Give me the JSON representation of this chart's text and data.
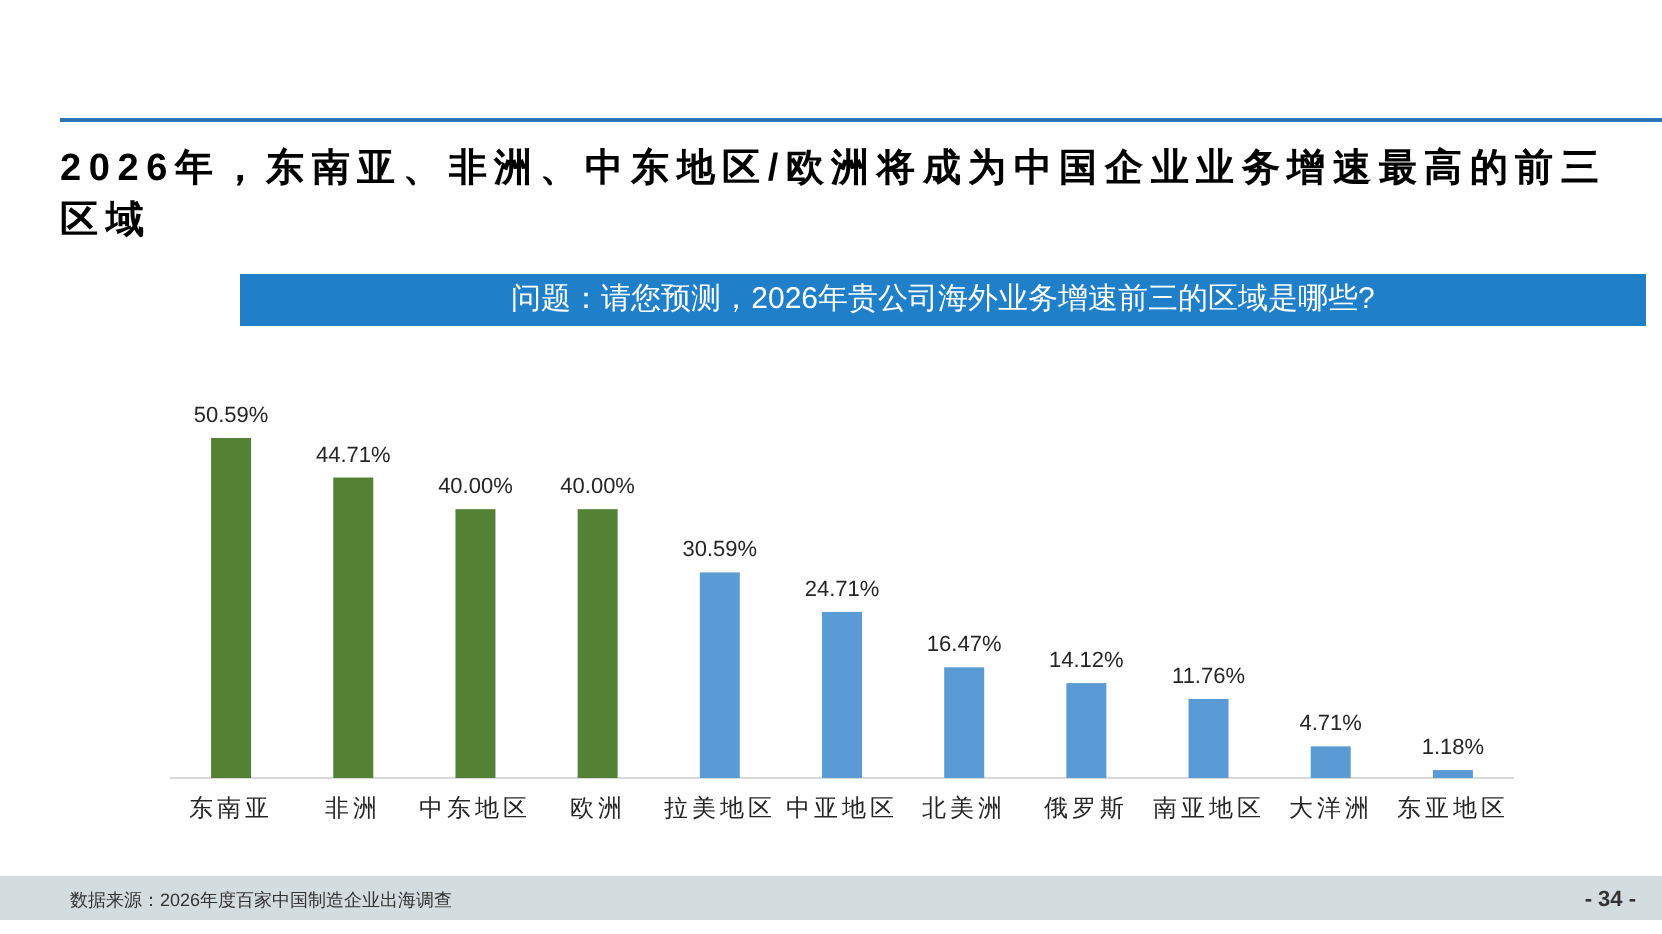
{
  "chart_data": {
    "type": "bar",
    "title": "2026年，东南亚、非洲、中东地区/欧洲将成为中国企业业务增速最高的前三区域",
    "subtitle": "问题：请您预测，2026年贵公司海外业务增速前三的区域是哪些?",
    "categories": [
      "东南亚",
      "非洲",
      "中东地区",
      "欧洲",
      "拉美地区",
      "中亚地区",
      "北美洲",
      "俄罗斯",
      "南亚地区",
      "大洋洲",
      "东亚地区"
    ],
    "values": [
      50.59,
      44.71,
      40.0,
      40.0,
      30.59,
      24.71,
      16.47,
      14.12,
      11.76,
      4.71,
      1.18
    ],
    "colors": [
      "#548235",
      "#548235",
      "#548235",
      "#548235",
      "#5b9bd5",
      "#5b9bd5",
      "#5b9bd5",
      "#5b9bd5",
      "#5b9bd5",
      "#5b9bd5",
      "#5b9bd5"
    ],
    "value_labels": [
      "50.59%",
      "44.71%",
      "40.00%",
      "40.00%",
      "30.59%",
      "24.71%",
      "16.47%",
      "14.12%",
      "11.76%",
      "4.71%",
      "1.18%"
    ],
    "annotations": [
      "数据来源：2026年度百家中国制造企业出海调查",
      "- 34 -"
    ]
  }
}
